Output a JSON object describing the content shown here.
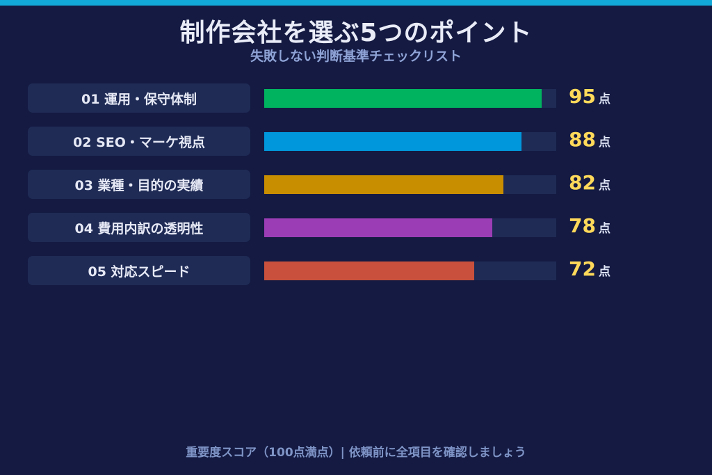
{
  "header": {
    "title": "制作会社を選ぶ5つのポイント",
    "subtitle": "失敗しない判断基準チェックリスト"
  },
  "footer": {
    "note": "重要度スコア（100点満点）| 依頼前に全項目を確認しましょう"
  },
  "colors": {
    "background": "#141a42",
    "accent_bar": "#12a9d8",
    "track": "#1f2b55",
    "score_text": "#ffd95a"
  },
  "chart_data": {
    "type": "bar",
    "orientation": "horizontal",
    "title": "制作会社を選ぶ5つのポイント",
    "subtitle": "失敗しない判断基準チェックリスト",
    "categories": [
      "01 運用・保守体制",
      "02 SEO・マーケ視点",
      "03 業種・目的の実績",
      "04 費用内訳の透明性",
      "05 対応スピード"
    ],
    "values": [
      95,
      88,
      82,
      78,
      72
    ],
    "value_unit": "点",
    "bar_colors": [
      "#00b45f",
      "#0097dc",
      "#c98d00",
      "#9b3db5",
      "#c8503c"
    ],
    "xlim": [
      0,
      100
    ],
    "grid": false,
    "legend": "none"
  }
}
